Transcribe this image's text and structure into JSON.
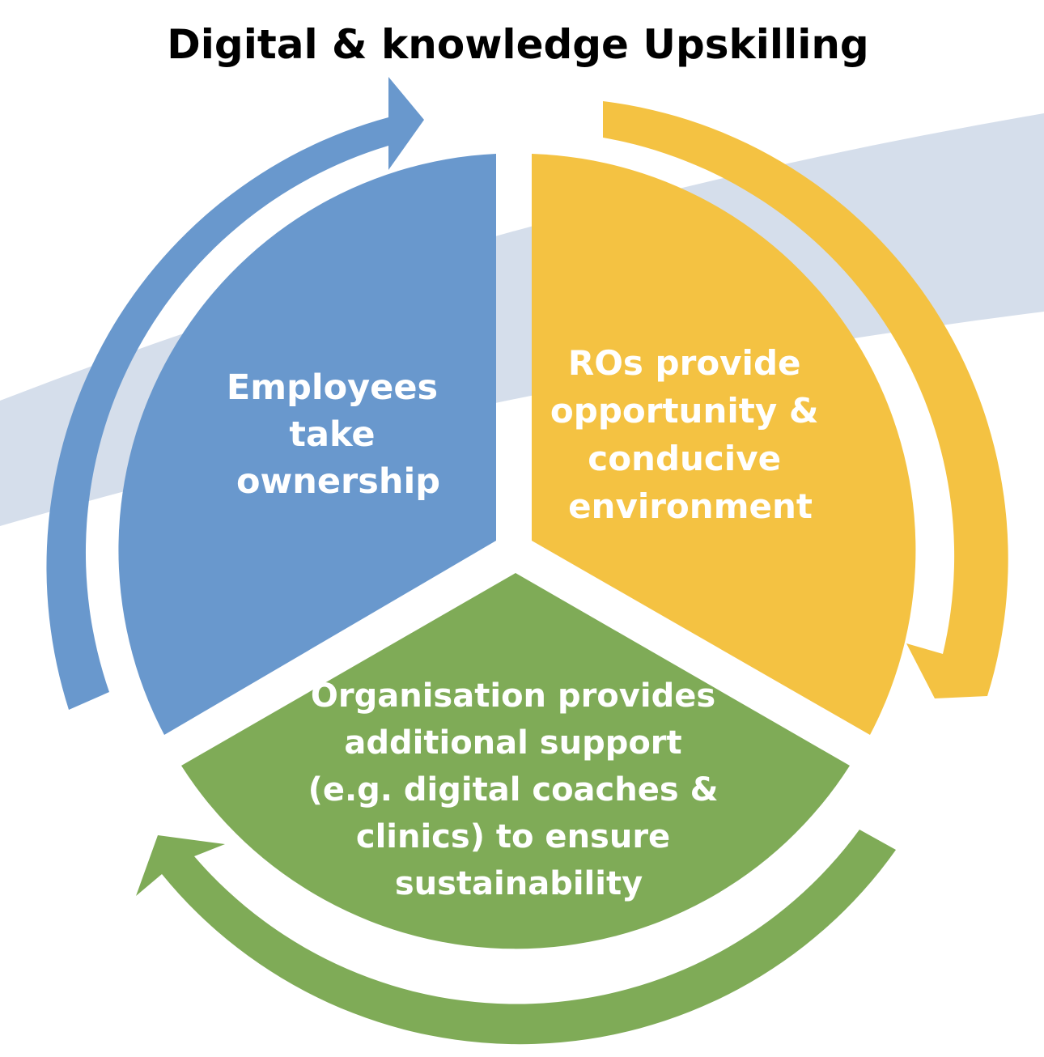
{
  "title": "Digital & knowledge Upskilling",
  "colors": {
    "blue": "#6998cd",
    "yellow": "#f4c242",
    "green": "#7fab57",
    "band": "#d5deeb",
    "text": "#ffffff",
    "title": "#000000"
  },
  "segments": {
    "employees": {
      "lines": [
        "Employees",
        "take",
        "ownership"
      ]
    },
    "ros": {
      "lines": [
        "ROs provide",
        "opportunity  &",
        "conducive",
        "environment"
      ]
    },
    "organisation": {
      "lines": [
        "Organisation  provides",
        "additional  support",
        "(e.g. digital coaches &",
        "clinics) to ensure",
        "sustainability"
      ]
    }
  },
  "arrows": {
    "blue": {
      "icon": "curved-arrow-right-icon"
    },
    "yellow": {
      "icon": "curved-arrow-down-icon"
    },
    "green": {
      "icon": "curved-arrow-left-icon"
    }
  }
}
